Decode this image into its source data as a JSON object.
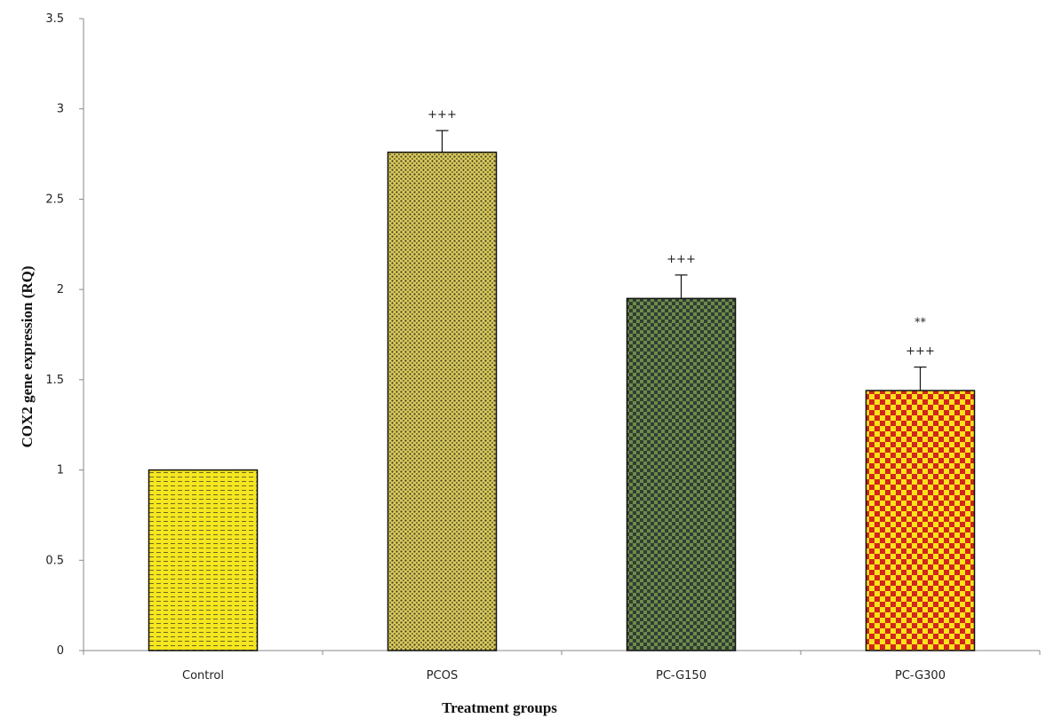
{
  "chart_data": {
    "type": "bar",
    "title": "",
    "xlabel": "Treatment groups",
    "ylabel": "COX2 gene expression (RQ)",
    "ylim": [
      0,
      3.5
    ],
    "yticks": [
      "0",
      "0.5",
      "1",
      "1.5",
      "2",
      "2.5",
      "3",
      "3.5"
    ],
    "categories": [
      "Control",
      "PCOS",
      "PC-G150",
      "PC-G300"
    ],
    "values": [
      1.0,
      2.76,
      1.95,
      1.44
    ],
    "errors": [
      0,
      0.12,
      0.13,
      0.13
    ],
    "annotations": [
      [],
      [
        "+++"
      ],
      [
        "+++"
      ],
      [
        "+++",
        "**"
      ]
    ],
    "grid": false,
    "legend": "none",
    "bar_styles": [
      {
        "pattern": "dashes",
        "fill": "#f5e61f",
        "ink": "#6b6a2a"
      },
      {
        "pattern": "dots",
        "fill": "#d9c95a",
        "ink": "#3d3a24"
      },
      {
        "pattern": "checker",
        "fill": "#6f8a4a",
        "ink": "#2e3f33"
      },
      {
        "pattern": "checker",
        "fill": "#ffe21a",
        "ink": "#d0261c"
      }
    ],
    "axis_color": "#888888"
  }
}
